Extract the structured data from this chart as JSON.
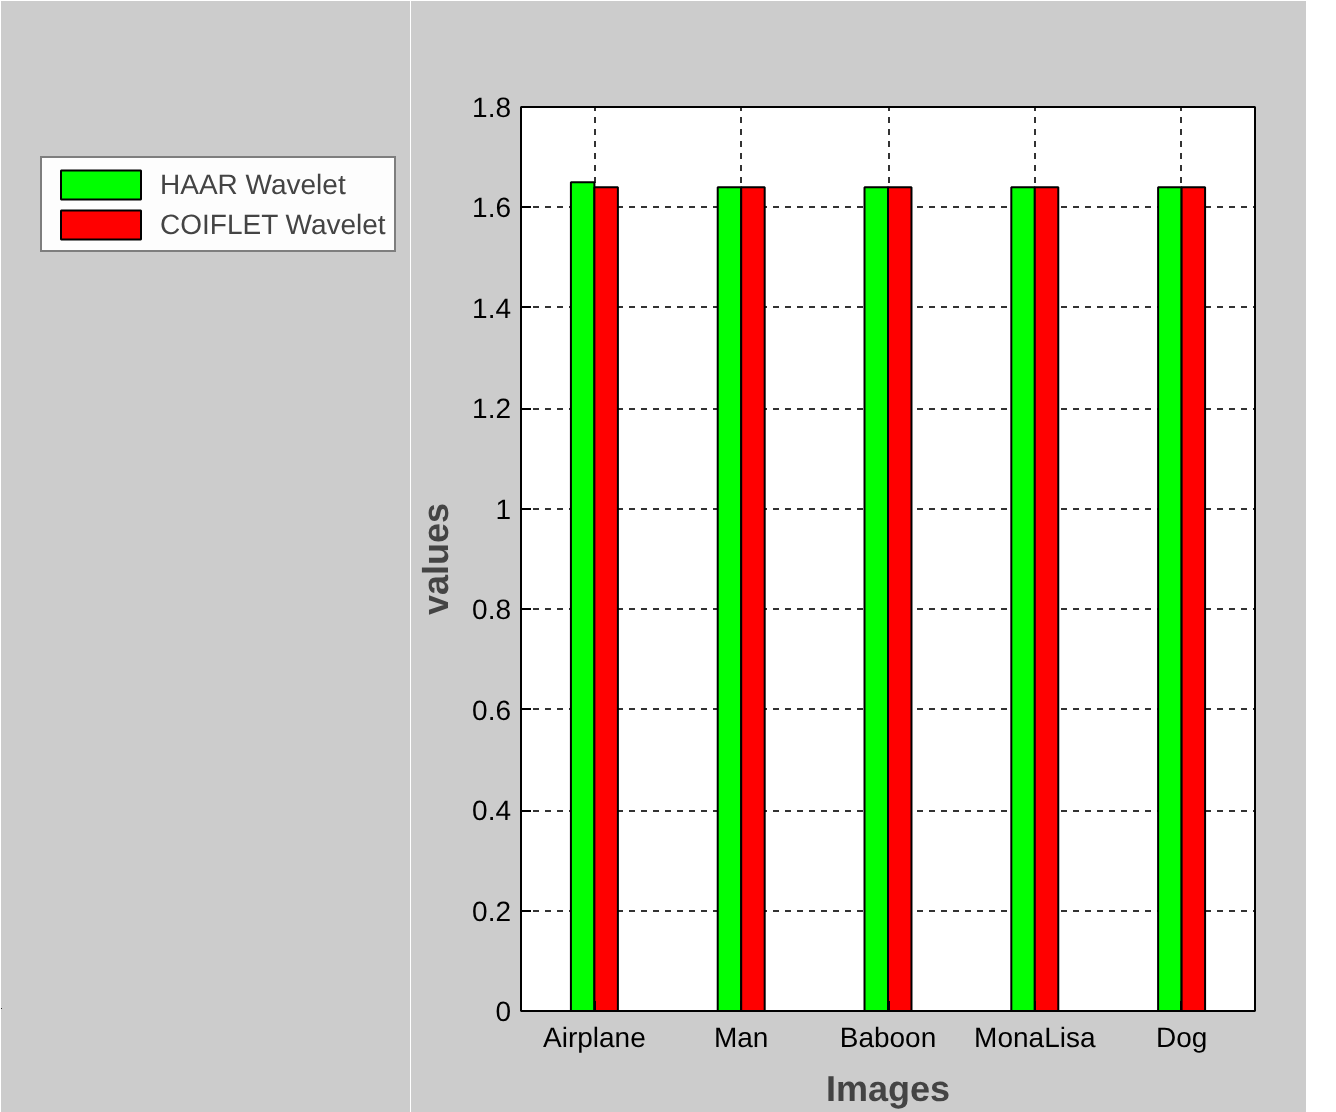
{
  "chart_data": {
    "type": "bar",
    "xlabel": "Images",
    "ylabel": "values",
    "categories": [
      "Airplane",
      "Man",
      "Baboon",
      "MonaLisa",
      "Dog"
    ],
    "series": [
      {
        "name": "HAAR Wavelet",
        "color": "#00ff00",
        "values": [
          1.65,
          1.64,
          1.64,
          1.64,
          1.64
        ]
      },
      {
        "name": "COIFLET Wavelet",
        "color": "#ff0000",
        "values": [
          1.64,
          1.64,
          1.64,
          1.64,
          1.64
        ]
      }
    ],
    "ylim": [
      0,
      1.8
    ],
    "yticks": [
      0,
      0.2,
      0.4,
      0.6,
      0.8,
      1,
      1.2,
      1.4,
      1.6,
      1.8
    ],
    "grid": true,
    "legend": "top left"
  }
}
